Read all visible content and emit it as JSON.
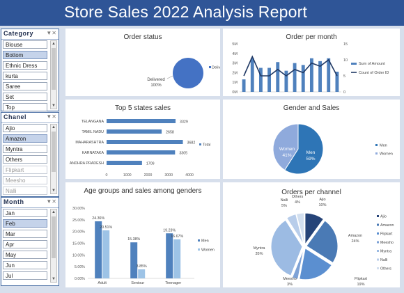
{
  "title": "Store Sales 2022 Analysis Report",
  "slicers": {
    "category": {
      "title": "Category",
      "items": [
        {
          "label": "Blouse",
          "state": "normal"
        },
        {
          "label": "Bottom",
          "state": "selected"
        },
        {
          "label": "Ethnic Dress",
          "state": "normal"
        },
        {
          "label": "kurta",
          "state": "normal"
        },
        {
          "label": "Saree",
          "state": "normal"
        },
        {
          "label": "Set",
          "state": "normal"
        },
        {
          "label": "Top",
          "state": "normal"
        }
      ]
    },
    "channel": {
      "title": "Chanel",
      "items": [
        {
          "label": "Ajio",
          "state": "normal"
        },
        {
          "label": "Amazon",
          "state": "selected"
        },
        {
          "label": "Myntra",
          "state": "normal"
        },
        {
          "label": "Others",
          "state": "normal"
        },
        {
          "label": "Flipkart",
          "state": "dim"
        },
        {
          "label": "Meesho",
          "state": "dim"
        },
        {
          "label": "Nalli",
          "state": "dim"
        }
      ]
    },
    "month": {
      "title": "Month",
      "items": [
        {
          "label": "Jan",
          "state": "normal"
        },
        {
          "label": "Feb",
          "state": "selected"
        },
        {
          "label": "Mar",
          "state": "normal"
        },
        {
          "label": "Apr",
          "state": "normal"
        },
        {
          "label": "May",
          "state": "normal"
        },
        {
          "label": "Jun",
          "state": "normal"
        },
        {
          "label": "Jul",
          "state": "normal"
        }
      ]
    }
  },
  "colors": {
    "banner": "#2f5597",
    "bar": "#5b9bd5",
    "dark_bar": "#4f81bd",
    "light_bar": "#9dc3e6",
    "line": "#1f3864",
    "women": "#8faadc",
    "men": "#2e75b6"
  },
  "chart_data": [
    {
      "id": "order-status",
      "type": "pie",
      "title": "Order status",
      "categories": [
        "Delivered"
      ],
      "values": [
        100
      ],
      "data_labels": [
        "Delivered\n100%"
      ],
      "legend": [
        "Delivered"
      ],
      "legend_position": "right"
    },
    {
      "id": "order-per-month",
      "type": "bar",
      "title": "Order per month",
      "categories": [
        "1",
        "2",
        "3",
        "4",
        "5",
        "6",
        "7",
        "8",
        "9",
        "10",
        "11",
        "12"
      ],
      "series": [
        {
          "name": "Sum of Amount",
          "type": "bar",
          "axis": "left",
          "values": [
            1.3,
            3.5,
            2.5,
            2.5,
            3.1,
            2.2,
            3.0,
            2.8,
            3.5,
            3.2,
            3.5,
            2.1
          ]
        },
        {
          "name": "Count of Order ID",
          "type": "line",
          "axis": "right",
          "values": [
            5,
            11,
            5,
            5,
            7,
            5,
            7,
            6,
            9,
            8,
            10,
            5
          ]
        }
      ],
      "ylim": [
        0,
        5
      ],
      "y_ticks": [
        "0M",
        "1M",
        "2M",
        "3M",
        "4M",
        "5M"
      ],
      "y2lim": [
        0,
        15
      ],
      "y2_ticks": [
        "0",
        "5",
        "10",
        "15"
      ],
      "legend_position": "right"
    },
    {
      "id": "top5-states",
      "type": "bar",
      "orientation": "horizontal",
      "title": "Top 5 states sales",
      "categories": [
        "TELANGANA",
        "TAMIL NADU",
        "MAHARASHTRA",
        "KARNATAKA",
        "ANDHRA PRADESH"
      ],
      "values": [
        3329,
        2658,
        3682,
        3305,
        1709
      ],
      "xlim": [
        0,
        4000
      ],
      "x_ticks": [
        "0",
        "1000",
        "2000",
        "3000",
        "4000"
      ],
      "legend": [
        "Total"
      ],
      "legend_position": "right"
    },
    {
      "id": "gender-sales",
      "type": "pie",
      "title": "Gender and Sales",
      "categories": [
        "Men",
        "Women"
      ],
      "values": [
        59,
        41
      ],
      "data_labels": [
        "Men\n59%",
        "Women\n41%"
      ],
      "legend": [
        "Men",
        "Women"
      ],
      "legend_position": "right"
    },
    {
      "id": "age-groups",
      "type": "bar",
      "title": "Age groups and sales among genders",
      "categories": [
        "Adult",
        "Seniour",
        "Teenager"
      ],
      "series": [
        {
          "name": "Men",
          "values": [
            24.36,
            15.38,
            19.23
          ],
          "labels": [
            "24.36%",
            "15.38%",
            "19.23%"
          ]
        },
        {
          "name": "Women",
          "values": [
            20.51,
            3.85,
            16.67
          ],
          "labels": [
            "20.51%",
            "3.85%",
            "16.67%"
          ]
        }
      ],
      "ylim": [
        0,
        30
      ],
      "y_ticks": [
        "0.00%",
        "5.00%",
        "10.00%",
        "15.00%",
        "20.00%",
        "25.00%",
        "30.00%"
      ],
      "legend_position": "right"
    },
    {
      "id": "orders-per-channel",
      "type": "pie",
      "title": "Orders per channel",
      "categories": [
        "Ajio",
        "Amazon",
        "Flipkart",
        "Meesho",
        "Myntra",
        "Nalli",
        "Others"
      ],
      "values": [
        10,
        24,
        19,
        3,
        35,
        5,
        4
      ],
      "data_labels": [
        "Ajio\n10%",
        "Amazon\n24%",
        "Flipkart\n19%",
        "Meesho\n3%",
        "Myntra\n35%",
        "Nalli\n5%",
        "Others\n4%"
      ],
      "legend": [
        "Ajio",
        "Amazon",
        "Flipkart",
        "Meesho",
        "Myntra",
        "Nalli",
        "Others"
      ],
      "legend_position": "right",
      "exploded": true
    }
  ]
}
